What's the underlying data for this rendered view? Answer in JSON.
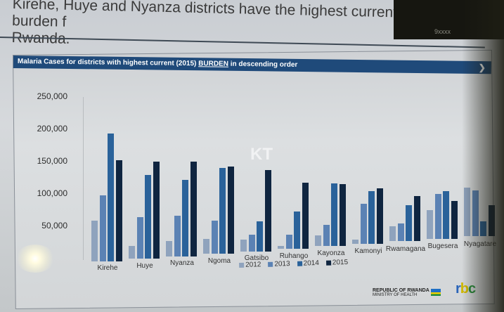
{
  "slide": {
    "heading": "Kirehe, Huye and Nyanza districts have the highest current burden for Rwanda.",
    "heading_line1": "Kirehe, Huye and Nyanza districts have the highest current burden f",
    "heading_line2": "Rwanda.",
    "slide_number": "9xxxx",
    "watermark": "KT"
  },
  "banner": {
    "text_before": "Malaria Cases for districts with highest current (2015) ",
    "text_underlined": "BURDEN",
    "text_after": " in descending order",
    "chevron": "❯"
  },
  "footer": {
    "ministry_line1": "REPUBLIC OF RWANDA",
    "ministry_line2": "MINISTRY OF HEALTH",
    "rbc_logo": "rbc"
  },
  "colors": {
    "banner": "#1f4a7a",
    "s2012": "#8fa3bd",
    "s2013": "#5b82b4",
    "s2014": "#2a629a",
    "s2015": "#0f2540"
  },
  "chart_data": {
    "type": "bar",
    "title": "Malaria Cases for districts with highest current (2015) BURDEN in descending order",
    "xlabel": "",
    "ylabel": "",
    "ylim": [
      0,
      250000
    ],
    "yticks": [
      "50,000",
      "100,000",
      "150,000",
      "200,000",
      "250,000"
    ],
    "grid": false,
    "legend_position": "bottom",
    "categories": [
      "Kirehe",
      "Huye",
      "Nyanza",
      "Ngoma",
      "Gatsibo",
      "Ruhango",
      "Kayonza",
      "Kamonyi",
      "Rwamagana",
      "Bugesera",
      "Nyagatare"
    ],
    "series": [
      {
        "name": "2012",
        "values": [
          68000,
          22000,
          25000,
          25000,
          20000,
          5000,
          18000,
          7000,
          25000,
          47000,
          81000
        ]
      },
      {
        "name": "2013",
        "values": [
          110000,
          70000,
          68000,
          55000,
          28000,
          23000,
          36000,
          66000,
          30000,
          74000,
          76000
        ]
      },
      {
        "name": "2014",
        "values": [
          213000,
          140000,
          127000,
          143000,
          50000,
          62000,
          105000,
          87000,
          60000,
          79000,
          24000
        ]
      },
      {
        "name": "2015",
        "values": [
          168000,
          162000,
          157000,
          145000,
          135000,
          110000,
          103000,
          92000,
          75000,
          63000,
          51000
        ]
      }
    ]
  }
}
